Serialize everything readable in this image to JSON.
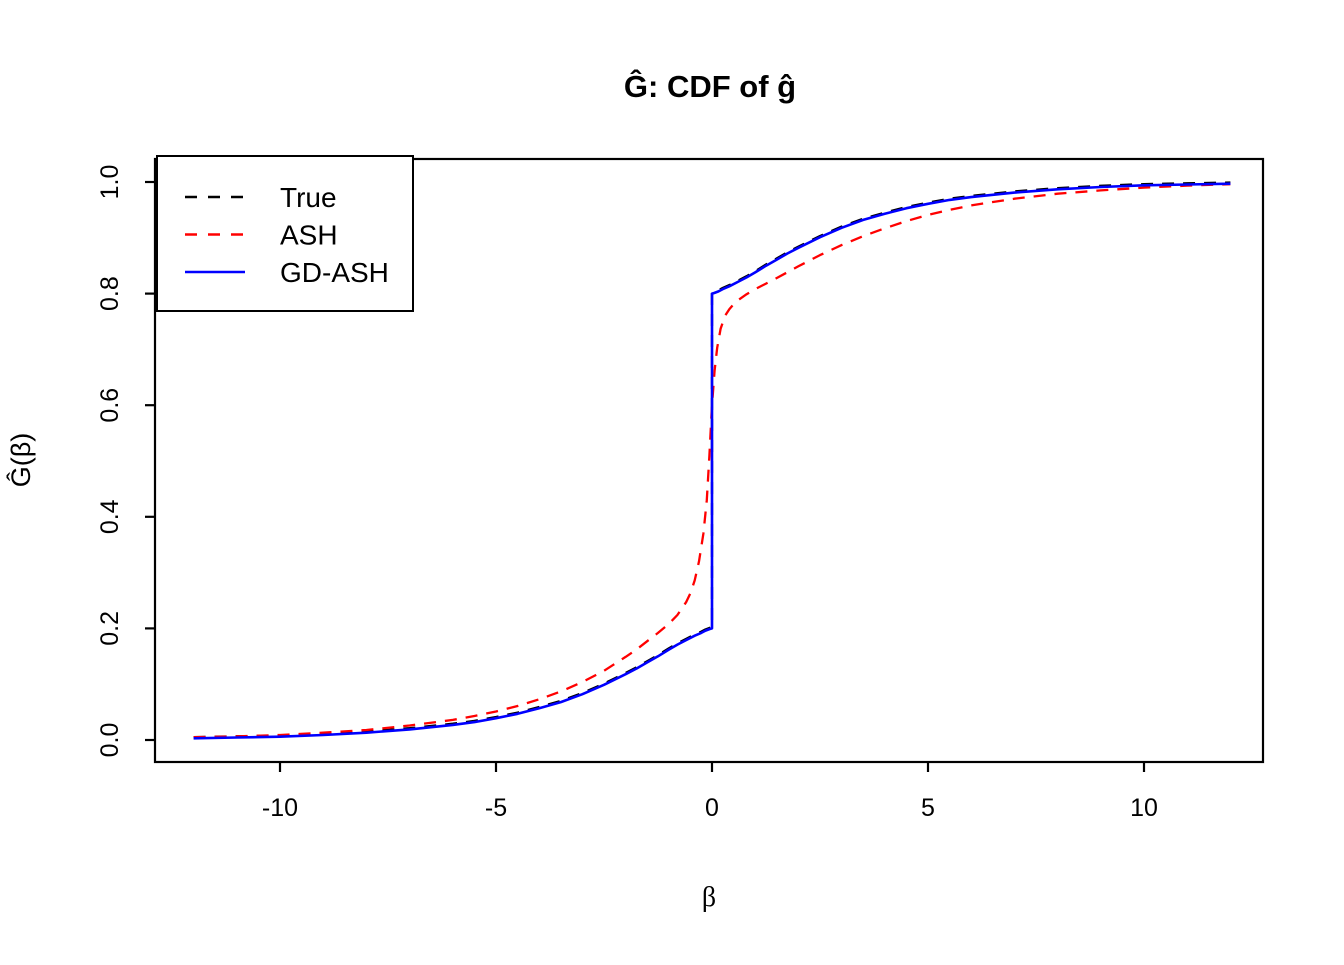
{
  "title": "Ĝ: CDF of ĝ",
  "xlabel": "β",
  "ylabel": "Ĝ(β)",
  "colors": {
    "background": "#ffffff",
    "axis": "#000000",
    "true": "#000000",
    "ash": "#ff0000",
    "gd_ash": "#0000ff"
  },
  "legend": {
    "position": "top-left",
    "items": [
      {
        "label": "True",
        "color": "#000000",
        "style": "dashed"
      },
      {
        "label": "ASH",
        "color": "#ff0000",
        "style": "dashed"
      },
      {
        "label": "GD-ASH",
        "color": "#0000ff",
        "style": "solid"
      }
    ]
  },
  "chart_data": {
    "type": "line",
    "title": "Ĝ: CDF of ĝ",
    "xlabel": "β",
    "ylabel": "Ĝ(β)",
    "xlim": [
      -12.96,
      12.96
    ],
    "ylim": [
      -0.04,
      1.04
    ],
    "x_ticks": [
      -10,
      -5,
      0,
      5,
      10
    ],
    "y_ticks": [
      "0.0",
      "0.2",
      "0.4",
      "0.6",
      "0.8",
      "1.0"
    ],
    "grid": false,
    "legend_position": "top-left",
    "description": "CDFs of a prior g with point mass 0.6 at zero: jump from 0.2 to 0.8 at beta=0. True and GD-ASH overlap; ASH is smoother through the jump.",
    "series": [
      {
        "name": "True",
        "color": "#000000",
        "style": "dashed",
        "points": [
          [
            -12,
            0.003
          ],
          [
            -11,
            0.0045
          ],
          [
            -10,
            0.006
          ],
          [
            -9,
            0.009
          ],
          [
            -8,
            0.013
          ],
          [
            -7,
            0.019
          ],
          [
            -6,
            0.027
          ],
          [
            -5.5,
            0.032
          ],
          [
            -5,
            0.039
          ],
          [
            -4.5,
            0.047
          ],
          [
            -4,
            0.057
          ],
          [
            -3.5,
            0.068
          ],
          [
            -3,
            0.082
          ],
          [
            -2.5,
            0.099
          ],
          [
            -2,
            0.118
          ],
          [
            -1.75,
            0.128
          ],
          [
            -1.5,
            0.139
          ],
          [
            -1.25,
            0.15
          ],
          [
            -1,
            0.162
          ],
          [
            -0.8,
            0.171
          ],
          [
            -0.6,
            0.179
          ],
          [
            -0.4,
            0.187
          ],
          [
            -0.25,
            0.192
          ],
          [
            -0.15,
            0.196
          ],
          [
            -0.05,
            0.199
          ],
          [
            0,
            0.2
          ],
          [
            0,
            0.8
          ],
          [
            0.05,
            0.801
          ],
          [
            0.15,
            0.804
          ],
          [
            0.25,
            0.808
          ],
          [
            0.4,
            0.813
          ],
          [
            0.6,
            0.821
          ],
          [
            0.8,
            0.829
          ],
          [
            1,
            0.838
          ],
          [
            1.25,
            0.85
          ],
          [
            1.5,
            0.861
          ],
          [
            1.75,
            0.872
          ],
          [
            2,
            0.882
          ],
          [
            2.5,
            0.901
          ],
          [
            3,
            0.918
          ],
          [
            3.5,
            0.932
          ],
          [
            4,
            0.943
          ],
          [
            4.5,
            0.953
          ],
          [
            5,
            0.961
          ],
          [
            5.5,
            0.968
          ],
          [
            6,
            0.973
          ],
          [
            7,
            0.981
          ],
          [
            8,
            0.987
          ],
          [
            9,
            0.991
          ],
          [
            10,
            0.994
          ],
          [
            11,
            0.9955
          ],
          [
            12,
            0.997
          ]
        ]
      },
      {
        "name": "ASH",
        "color": "#ff0000",
        "style": "dashed",
        "points": [
          [
            -12,
            0.005
          ],
          [
            -11,
            0.0065
          ],
          [
            -10,
            0.009
          ],
          [
            -9,
            0.013
          ],
          [
            -8,
            0.018
          ],
          [
            -7,
            0.026
          ],
          [
            -6,
            0.036
          ],
          [
            -5.5,
            0.043
          ],
          [
            -5,
            0.051
          ],
          [
            -4.5,
            0.061
          ],
          [
            -4,
            0.073
          ],
          [
            -3.5,
            0.087
          ],
          [
            -3,
            0.104
          ],
          [
            -2.5,
            0.124
          ],
          [
            -2,
            0.149
          ],
          [
            -1.75,
            0.162
          ],
          [
            -1.5,
            0.177
          ],
          [
            -1.25,
            0.192
          ],
          [
            -1,
            0.208
          ],
          [
            -0.8,
            0.224
          ],
          [
            -0.6,
            0.247
          ],
          [
            -0.5,
            0.263
          ],
          [
            -0.4,
            0.286
          ],
          [
            -0.3,
            0.32
          ],
          [
            -0.2,
            0.37
          ],
          [
            -0.12,
            0.43
          ],
          [
            -0.06,
            0.51
          ],
          [
            0,
            0.6
          ],
          [
            0.06,
            0.662
          ],
          [
            0.12,
            0.703
          ],
          [
            0.2,
            0.737
          ],
          [
            0.3,
            0.76
          ],
          [
            0.4,
            0.772
          ],
          [
            0.5,
            0.781
          ],
          [
            0.6,
            0.788
          ],
          [
            0.8,
            0.799
          ],
          [
            1,
            0.808
          ],
          [
            1.25,
            0.818
          ],
          [
            1.5,
            0.828
          ],
          [
            2,
            0.849
          ],
          [
            2.5,
            0.869
          ],
          [
            3,
            0.887
          ],
          [
            3.5,
            0.903
          ],
          [
            4,
            0.917
          ],
          [
            4.5,
            0.93
          ],
          [
            5,
            0.941
          ],
          [
            5.5,
            0.95
          ],
          [
            6,
            0.958
          ],
          [
            7,
            0.97
          ],
          [
            8,
            0.979
          ],
          [
            9,
            0.985
          ],
          [
            10,
            0.99
          ],
          [
            11,
            0.9935
          ],
          [
            12,
            0.996
          ]
        ]
      },
      {
        "name": "GD-ASH",
        "color": "#0000ff",
        "style": "solid",
        "points": [
          [
            -12,
            0.003
          ],
          [
            -11,
            0.0045
          ],
          [
            -10,
            0.006
          ],
          [
            -9,
            0.009
          ],
          [
            -8,
            0.013
          ],
          [
            -7,
            0.019
          ],
          [
            -6,
            0.027
          ],
          [
            -5.5,
            0.032
          ],
          [
            -5,
            0.039
          ],
          [
            -4.5,
            0.047
          ],
          [
            -4,
            0.057
          ],
          [
            -3.5,
            0.068
          ],
          [
            -3,
            0.082
          ],
          [
            -2.5,
            0.099
          ],
          [
            -2,
            0.118
          ],
          [
            -1.75,
            0.128
          ],
          [
            -1.5,
            0.139
          ],
          [
            -1.25,
            0.15
          ],
          [
            -1,
            0.162
          ],
          [
            -0.8,
            0.171
          ],
          [
            -0.6,
            0.179
          ],
          [
            -0.4,
            0.187
          ],
          [
            -0.25,
            0.192
          ],
          [
            -0.15,
            0.196
          ],
          [
            -0.05,
            0.199
          ],
          [
            0,
            0.2
          ],
          [
            0,
            0.8
          ],
          [
            0.05,
            0.801
          ],
          [
            0.15,
            0.804
          ],
          [
            0.25,
            0.808
          ],
          [
            0.4,
            0.813
          ],
          [
            0.6,
            0.821
          ],
          [
            0.8,
            0.829
          ],
          [
            1,
            0.838
          ],
          [
            1.25,
            0.85
          ],
          [
            1.5,
            0.861
          ],
          [
            1.75,
            0.872
          ],
          [
            2,
            0.882
          ],
          [
            2.5,
            0.901
          ],
          [
            3,
            0.918
          ],
          [
            3.5,
            0.932
          ],
          [
            4,
            0.943
          ],
          [
            4.5,
            0.953
          ],
          [
            5,
            0.961
          ],
          [
            5.5,
            0.968
          ],
          [
            6,
            0.973
          ],
          [
            7,
            0.981
          ],
          [
            8,
            0.987
          ],
          [
            9,
            0.991
          ],
          [
            10,
            0.994
          ],
          [
            11,
            0.9955
          ],
          [
            12,
            0.997
          ]
        ]
      }
    ]
  }
}
